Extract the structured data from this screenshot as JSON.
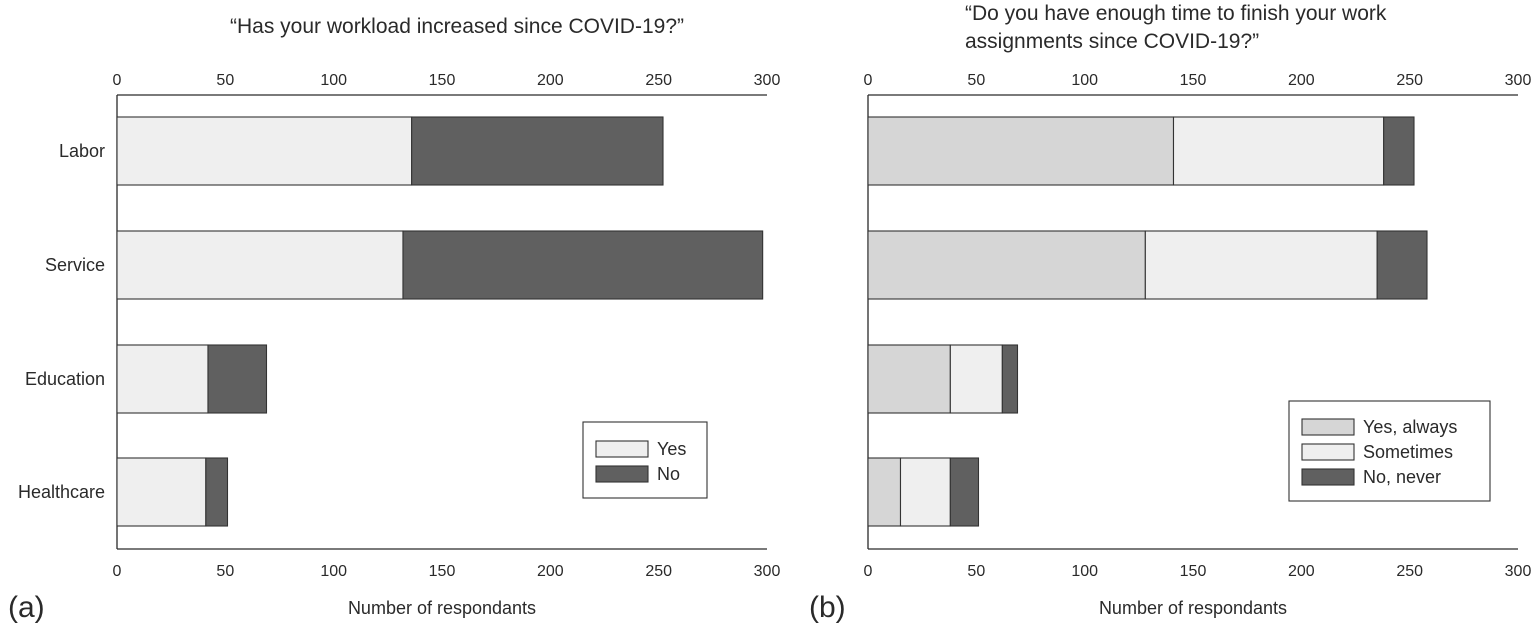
{
  "chart_data": [
    {
      "type": "bar",
      "orientation": "horizontal",
      "stacked": true,
      "panel_label": "(a)",
      "title_lines": [
        "“Has your workload increased since COVID-19?”"
      ],
      "xlabel": "Number of respondants",
      "xlim": [
        0,
        300
      ],
      "xticks": [
        0,
        50,
        100,
        150,
        200,
        250,
        300
      ],
      "categories": [
        "Labor",
        "Service",
        "Education",
        "Healthcare"
      ],
      "series": [
        {
          "name": "Yes",
          "color": "#efefef",
          "values": [
            136,
            132,
            42,
            41
          ]
        },
        {
          "name": "No",
          "color": "#606060",
          "values": [
            116,
            166,
            27,
            10
          ]
        }
      ],
      "legend": {
        "position": "lower-right",
        "entries": [
          "Yes",
          "No"
        ]
      },
      "grid": false
    },
    {
      "type": "bar",
      "orientation": "horizontal",
      "stacked": true,
      "panel_label": "(b)",
      "title_lines": [
        "“Do you have enough time to finish your work",
        "assignments since COVID-19?”"
      ],
      "xlabel": "Number of respondants",
      "xlim": [
        0,
        300
      ],
      "xticks": [
        0,
        50,
        100,
        150,
        200,
        250,
        300
      ],
      "categories": [
        "Labor",
        "Service",
        "Education",
        "Healthcare"
      ],
      "series": [
        {
          "name": "Yes, always",
          "color": "#d6d6d6",
          "values": [
            141,
            128,
            38,
            15
          ]
        },
        {
          "name": "Sometimes",
          "color": "#efefef",
          "values": [
            97,
            107,
            24,
            23
          ]
        },
        {
          "name": "No, never",
          "color": "#606060",
          "values": [
            14,
            23,
            7,
            13
          ]
        }
      ],
      "legend": {
        "position": "lower-right",
        "entries": [
          "Yes, always",
          "Sometimes",
          "No, never"
        ]
      },
      "grid": false
    }
  ]
}
